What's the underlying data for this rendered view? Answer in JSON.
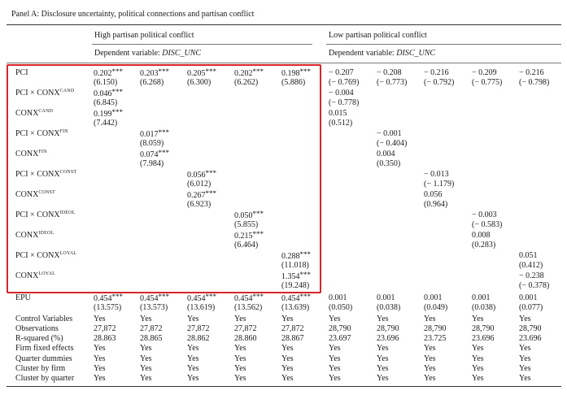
{
  "panel_title": "Panel A: Disclosure uncertainty, political connections and partisan conflict",
  "groups": [
    {
      "label": "High partisan political conflict",
      "dep_var_prefix": "Dependent variable: ",
      "dep_var": "DISC_UNC"
    },
    {
      "label": "Low partisan political conflict",
      "dep_var_prefix": "Dependent variable: ",
      "dep_var": "DISC_UNC"
    }
  ],
  "coef_rows": [
    {
      "label": "PCI",
      "sup": "",
      "cells": [
        {
          "col": 0,
          "coef": "0.202",
          "stars": "***",
          "t": "(6.150)"
        },
        {
          "col": 1,
          "coef": "0.203",
          "stars": "***",
          "t": "(6.268)"
        },
        {
          "col": 2,
          "coef": "0.205",
          "stars": "***",
          "t": "(6.300)"
        },
        {
          "col": 3,
          "coef": "0.202",
          "stars": "***",
          "t": "(6.262)"
        },
        {
          "col": 4,
          "coef": "0.198",
          "stars": "***",
          "t": "(5.886)"
        },
        {
          "col": 5,
          "coef": "− 0.207",
          "stars": "",
          "t": "(− 0.769)"
        },
        {
          "col": 6,
          "coef": "− 0.208",
          "stars": "",
          "t": "(− 0.773)"
        },
        {
          "col": 7,
          "coef": "− 0.216",
          "stars": "",
          "t": "(− 0.792)"
        },
        {
          "col": 8,
          "coef": "− 0.209",
          "stars": "",
          "t": "(− 0.775)"
        },
        {
          "col": 9,
          "coef": "− 0.216",
          "stars": "",
          "t": "(− 0.798)"
        }
      ]
    },
    {
      "label": "PCI × CONX",
      "sup": "CAND",
      "cells": [
        {
          "col": 0,
          "coef": "0.046",
          "stars": "***",
          "t": "(6.845)"
        },
        {
          "col": 5,
          "coef": "− 0.004",
          "stars": "",
          "t": "(− 0.778)"
        }
      ]
    },
    {
      "label": "CONX",
      "sup": "CAND",
      "cells": [
        {
          "col": 0,
          "coef": "0.199",
          "stars": "***",
          "t": "(7.442)"
        },
        {
          "col": 5,
          "coef": "0.015",
          "stars": "",
          "t": "(0.512)"
        }
      ]
    },
    {
      "label": "PCI × CONX",
      "sup": "FIN",
      "cells": [
        {
          "col": 1,
          "coef": "0.017",
          "stars": "***",
          "t": "(8.059)"
        },
        {
          "col": 6,
          "coef": "− 0.001",
          "stars": "",
          "t": "(− 0.404)"
        }
      ]
    },
    {
      "label": "CONX",
      "sup": "FIN",
      "cells": [
        {
          "col": 1,
          "coef": "0.074",
          "stars": "***",
          "t": "(7.984)"
        },
        {
          "col": 6,
          "coef": "0.004",
          "stars": "",
          "t": "(0.350)"
        }
      ]
    },
    {
      "label": "PCI × CONX",
      "sup": "CONST",
      "cells": [
        {
          "col": 2,
          "coef": "0.056",
          "stars": "***",
          "t": "(6.012)"
        },
        {
          "col": 7,
          "coef": "− 0.013",
          "stars": "",
          "t": "(− 1.179)"
        }
      ]
    },
    {
      "label": "CONX",
      "sup": "CONST",
      "cells": [
        {
          "col": 2,
          "coef": "0.267",
          "stars": "***",
          "t": "(6.923)"
        },
        {
          "col": 7,
          "coef": "0.056",
          "stars": "",
          "t": "(0.964)"
        }
      ]
    },
    {
      "label": "PCI × CONX",
      "sup": "IDEOL",
      "cells": [
        {
          "col": 3,
          "coef": "0.050",
          "stars": "***",
          "t": "(5.855)"
        },
        {
          "col": 8,
          "coef": "− 0.003",
          "stars": "",
          "t": "(− 0.583)"
        }
      ]
    },
    {
      "label": "CONX",
      "sup": "IDEOL",
      "cells": [
        {
          "col": 3,
          "coef": "0.215",
          "stars": "***",
          "t": "(6.464)"
        },
        {
          "col": 8,
          "coef": "0.008",
          "stars": "",
          "t": "(0.283)"
        }
      ]
    },
    {
      "label": "PCI × CONX",
      "sup": "LOYAL",
      "cells": [
        {
          "col": 4,
          "coef": "0.288",
          "stars": "***",
          "t": "(11.018)"
        },
        {
          "col": 9,
          "coef": "0.051",
          "stars": "",
          "t": "(0.412)"
        }
      ]
    },
    {
      "label": "CONX",
      "sup": "LOYAL",
      "cells": [
        {
          "col": 4,
          "coef": "1.354",
          "stars": "***",
          "t": "(19.248)"
        },
        {
          "col": 9,
          "coef": "− 0.238",
          "stars": "",
          "t": "(− 0.378)"
        }
      ]
    },
    {
      "label": "EPU",
      "sup": "",
      "cells": [
        {
          "col": 0,
          "coef": "0.454",
          "stars": "***",
          "t": "(13.575)"
        },
        {
          "col": 1,
          "coef": "0.454",
          "stars": "***",
          "t": "(13.573)"
        },
        {
          "col": 2,
          "coef": "0.454",
          "stars": "***",
          "t": "(13.619)"
        },
        {
          "col": 3,
          "coef": "0.454",
          "stars": "***",
          "t": "(13.562)"
        },
        {
          "col": 4,
          "coef": "0.454",
          "stars": "***",
          "t": "(13.639)"
        },
        {
          "col": 5,
          "coef": "0.001",
          "stars": "",
          "t": "(0.050)"
        },
        {
          "col": 6,
          "coef": "0.001",
          "stars": "",
          "t": "(0.038)"
        },
        {
          "col": 7,
          "coef": "0.001",
          "stars": "",
          "t": "(0.049)"
        },
        {
          "col": 8,
          "coef": "0.001",
          "stars": "",
          "t": "(0.038)"
        },
        {
          "col": 9,
          "coef": "0.001",
          "stars": "",
          "t": "(0.077)"
        }
      ]
    }
  ],
  "stat_rows": [
    {
      "label": "Control Variables",
      "values": [
        "Yes",
        "Yes",
        "Yes",
        "Yes",
        "Yes",
        "Yes",
        "Yes",
        "Yes",
        "Yes",
        "Yes"
      ]
    },
    {
      "label": "Observations",
      "values": [
        "27,872",
        "27,872",
        "27,872",
        "27,872",
        "27,872",
        "28,790",
        "28,790",
        "28,790",
        "28,790",
        "28,790"
      ]
    },
    {
      "label": "R-squared (%)",
      "values": [
        "28.863",
        "28.865",
        "28.862",
        "28.860",
        "28.867",
        "23.697",
        "23.696",
        "23.725",
        "23.696",
        "23.696"
      ]
    },
    {
      "label": "Firm fixed effects",
      "values": [
        "Yes",
        "Yes",
        "Yes",
        "Yes",
        "Yes",
        "Yes",
        "Yes",
        "Yes",
        "Yes",
        "Yes"
      ]
    },
    {
      "label": "Quarter dummies",
      "values": [
        "Yes",
        "Yes",
        "Yes",
        "Yes",
        "Yes",
        "Yes",
        "Yes",
        "Yes",
        "Yes",
        "Yes"
      ]
    },
    {
      "label": "Cluster by firm",
      "values": [
        "Yes",
        "Yes",
        "Yes",
        "Yes",
        "Yes",
        "Yes",
        "Yes",
        "Yes",
        "Yes",
        "Yes"
      ]
    },
    {
      "label": "Cluster by quarter",
      "values": [
        "Yes",
        "Yes",
        "Yes",
        "Yes",
        "Yes",
        "Yes",
        "Yes",
        "Yes",
        "Yes",
        "Yes"
      ]
    }
  ],
  "colors": {
    "highlight": "#d8252b",
    "text": "#1a1a1a"
  }
}
